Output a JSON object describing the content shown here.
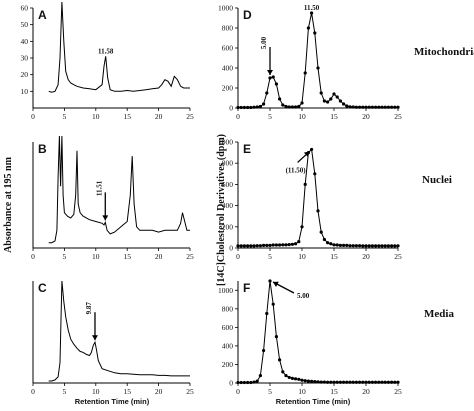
{
  "figure": {
    "y_label_left": "Absorbance at 195 nm",
    "y_label_right": "[14C]Cholesterol Derivatives (dpm)",
    "x_label": "Retention Time (min)",
    "row_labels": [
      "Mitochondria",
      "Nuclei",
      "Media"
    ]
  },
  "chart_data": [
    {
      "panel": "A",
      "type": "line",
      "row": 0,
      "col": 0,
      "sample": "Mitochondria",
      "xlabel": "Retention Time (min)",
      "ylabel": "Absorbance at 195 nm",
      "xlim": [
        0,
        25
      ],
      "ylim": [
        0,
        60
      ],
      "x_ticks": [
        0,
        5,
        10,
        15,
        20,
        25
      ],
      "y_ticks": [
        10,
        20,
        30,
        40,
        50,
        60
      ],
      "x": [
        2.5,
        3.0,
        3.5,
        4.0,
        4.3,
        4.6,
        4.9,
        5.2,
        5.6,
        6.0,
        6.5,
        7.0,
        8.0,
        9.0,
        10.0,
        11.0,
        11.3,
        11.58,
        11.9,
        12.3,
        13.0,
        14.0,
        15.0,
        16.0,
        17.0,
        18.0,
        19.0,
        20.0,
        20.5,
        21.0,
        21.5,
        22.0,
        22.5,
        23.0,
        23.5,
        24.0,
        25.0
      ],
      "y": [
        10,
        9.5,
        10,
        14,
        30,
        65,
        40,
        22,
        17,
        15,
        14,
        13,
        12,
        11.5,
        11,
        14,
        25,
        31,
        18,
        11,
        10,
        10,
        10.5,
        10,
        10.5,
        11,
        11.5,
        12,
        14,
        17,
        16,
        13,
        19,
        17,
        13,
        12,
        12
      ],
      "annotations": [
        {
          "text": "11.58",
          "x": 11.58,
          "y": 31
        }
      ]
    },
    {
      "panel": "B",
      "type": "line",
      "row": 1,
      "col": 0,
      "sample": "Nuclei",
      "xlabel": "Retention Time (min)",
      "ylabel": "Absorbance at 195 nm",
      "xlim": [
        0,
        25
      ],
      "ylim": [
        0,
        60
      ],
      "x_ticks": [
        0,
        5,
        10,
        15,
        20,
        25
      ],
      "y_ticks": [],
      "x": [
        2.5,
        3.0,
        3.5,
        3.8,
        4.0,
        4.2,
        4.4,
        4.6,
        4.8,
        5.0,
        5.5,
        6.0,
        6.5,
        6.8,
        7.0,
        7.2,
        7.5,
        8.0,
        9.0,
        10.0,
        11.0,
        11.3,
        11.51,
        11.8,
        12.3,
        13.0,
        14.0,
        15.0,
        15.5,
        15.8,
        16.1,
        16.5,
        17.0,
        18.0,
        19.0,
        20.0,
        21.0,
        22.0,
        23.0,
        23.5,
        23.8,
        24.1,
        24.5,
        25.0
      ],
      "y": [
        3,
        3,
        4,
        10,
        40,
        75,
        35,
        70,
        30,
        20,
        18,
        17,
        19,
        30,
        55,
        25,
        20,
        18,
        16,
        15,
        14,
        13,
        14.5,
        10,
        8,
        9,
        12,
        15,
        30,
        52,
        25,
        12,
        10,
        10,
        10,
        9,
        10,
        10,
        10,
        14,
        20,
        16,
        10,
        10
      ],
      "annotations": [
        {
          "text": "11.51",
          "x": 11.51,
          "y": 14.5,
          "arrow": "down"
        }
      ]
    },
    {
      "panel": "C",
      "type": "line",
      "row": 2,
      "col": 0,
      "sample": "Media",
      "xlabel": "Retention Time (min)",
      "ylabel": "Absorbance at 195 nm",
      "xlim": [
        0,
        25
      ],
      "ylim": [
        0,
        100
      ],
      "x_ticks": [
        0,
        5,
        10,
        15,
        20,
        25
      ],
      "y_ticks": [],
      "x": [
        2.5,
        3.0,
        3.5,
        4.0,
        4.3,
        4.6,
        4.9,
        5.2,
        5.6,
        6.0,
        6.5,
        7.0,
        7.5,
        8.0,
        8.5,
        9.0,
        9.3,
        9.6,
        9.87,
        10.1,
        10.4,
        11.0,
        12.0,
        13.0,
        14.0,
        15.0,
        16.0,
        17.0,
        18.0,
        19.0,
        20.0,
        21.0,
        22.0,
        23.0,
        24.0,
        25.0
      ],
      "y": [
        2,
        2,
        3,
        6,
        20,
        100,
        80,
        65,
        52,
        43,
        38,
        34,
        31,
        30,
        28,
        27,
        30,
        37,
        40,
        33,
        22,
        14,
        12,
        10,
        9,
        9,
        8.5,
        8,
        8,
        8,
        7.5,
        7.5,
        7,
        7,
        7,
        7
      ],
      "annotations": [
        {
          "text": "9.87",
          "x": 9.87,
          "y": 40,
          "arrow": "down"
        }
      ]
    },
    {
      "panel": "D",
      "type": "line",
      "row": 0,
      "col": 1,
      "sample": "Mitochondria",
      "xlabel": "Retention Time (min)",
      "ylabel": "[14C]Cholesterol Derivatives (dpm)",
      "xlim": [
        0,
        25
      ],
      "ylim": [
        0,
        1000
      ],
      "x_ticks": [
        0,
        5,
        10,
        15,
        20,
        25
      ],
      "y_ticks": [
        0,
        200,
        400,
        600,
        800,
        1000
      ],
      "x": [
        0,
        0.5,
        1,
        1.5,
        2,
        2.5,
        3,
        3.5,
        4,
        4.5,
        5,
        5.5,
        6,
        6.5,
        7,
        7.5,
        8,
        8.5,
        9,
        9.5,
        10,
        10.5,
        11,
        11.5,
        12,
        12.5,
        13,
        13.5,
        14,
        14.5,
        15,
        15.5,
        16,
        16.5,
        17,
        17.5,
        18,
        18.5,
        19,
        19.5,
        20,
        20.5,
        21,
        21.5,
        22,
        22.5,
        23,
        23.5,
        24,
        24.5,
        25
      ],
      "y": [
        5,
        5,
        5,
        5,
        5,
        8,
        10,
        15,
        40,
        150,
        300,
        310,
        240,
        90,
        30,
        15,
        10,
        10,
        10,
        15,
        50,
        350,
        800,
        950,
        750,
        400,
        150,
        70,
        60,
        90,
        140,
        110,
        70,
        40,
        20,
        12,
        10,
        8,
        8,
        8,
        8,
        8,
        8,
        8,
        8,
        8,
        8,
        8,
        8,
        8,
        8
      ],
      "annotations": [
        {
          "text": "5.00",
          "x": 5.0,
          "y": 310,
          "arrow": "down"
        },
        {
          "text": "11.50",
          "x": 11.5,
          "y": 950
        }
      ]
    },
    {
      "panel": "E",
      "type": "line",
      "row": 1,
      "col": 1,
      "sample": "Nuclei",
      "xlabel": "Retention Time (min)",
      "ylabel": "[14C]Cholesterol Derivatives (dpm)",
      "xlim": [
        0,
        25
      ],
      "ylim": [
        0,
        1000
      ],
      "x_ticks": [
        0,
        5,
        10,
        15,
        20,
        25
      ],
      "y_ticks": [
        0,
        200,
        400,
        600,
        800,
        1000
      ],
      "x": [
        0,
        0.5,
        1,
        1.5,
        2,
        2.5,
        3,
        3.5,
        4,
        4.5,
        5,
        5.5,
        6,
        6.5,
        7,
        7.5,
        8,
        8.5,
        9,
        9.5,
        10,
        10.5,
        11,
        11.5,
        12,
        12.5,
        13,
        13.5,
        14,
        14.5,
        15,
        15.5,
        16,
        16.5,
        17,
        17.5,
        18,
        18.5,
        19,
        19.5,
        20,
        20.5,
        21,
        21.5,
        22,
        22.5,
        23,
        23.5,
        24,
        24.5,
        25
      ],
      "y": [
        20,
        20,
        20,
        20,
        20,
        20,
        22,
        22,
        25,
        25,
        25,
        28,
        28,
        28,
        30,
        30,
        32,
        35,
        40,
        60,
        200,
        600,
        900,
        930,
        700,
        350,
        150,
        80,
        50,
        40,
        30,
        28,
        25,
        25,
        25,
        22,
        22,
        22,
        22,
        20,
        20,
        20,
        20,
        20,
        20,
        20,
        20,
        20,
        20,
        20,
        20
      ],
      "annotations": [
        {
          "text": "(11.50)",
          "x": 11.5,
          "y": 930,
          "arrow": "up-right"
        }
      ]
    },
    {
      "panel": "F",
      "type": "line",
      "row": 2,
      "col": 1,
      "sample": "Media",
      "xlabel": "Retention Time (min)",
      "ylabel": "[14C]Cholesterol Derivatives (dpm)",
      "xlim": [
        0,
        25
      ],
      "ylim": [
        0,
        1100
      ],
      "x_ticks": [
        0,
        5,
        10,
        15,
        20,
        25
      ],
      "y_ticks": [
        0,
        200,
        400,
        600,
        800,
        1000
      ],
      "x": [
        0,
        0.5,
        1,
        1.5,
        2,
        2.5,
        3,
        3.5,
        4,
        4.5,
        5,
        5.5,
        6,
        6.5,
        7,
        7.5,
        8,
        8.5,
        9,
        9.5,
        10,
        10.5,
        11,
        11.5,
        12,
        12.5,
        13,
        13.5,
        14,
        14.5,
        15,
        15.5,
        16,
        16.5,
        17,
        17.5,
        18,
        18.5,
        19,
        19.5,
        20,
        20.5,
        21,
        21.5,
        22,
        22.5,
        23,
        23.5,
        24,
        24.5,
        25
      ],
      "y": [
        5,
        5,
        5,
        5,
        5,
        10,
        20,
        80,
        350,
        750,
        1100,
        850,
        500,
        250,
        120,
        80,
        60,
        50,
        45,
        40,
        30,
        25,
        20,
        18,
        15,
        12,
        10,
        10,
        8,
        8,
        8,
        8,
        8,
        8,
        8,
        8,
        8,
        8,
        8,
        8,
        8,
        8,
        8,
        8,
        8,
        8,
        8,
        8,
        8,
        8,
        8
      ],
      "annotations": [
        {
          "text": "5.00",
          "x": 5.0,
          "y": 1100,
          "arrow": "up-left"
        }
      ]
    }
  ]
}
